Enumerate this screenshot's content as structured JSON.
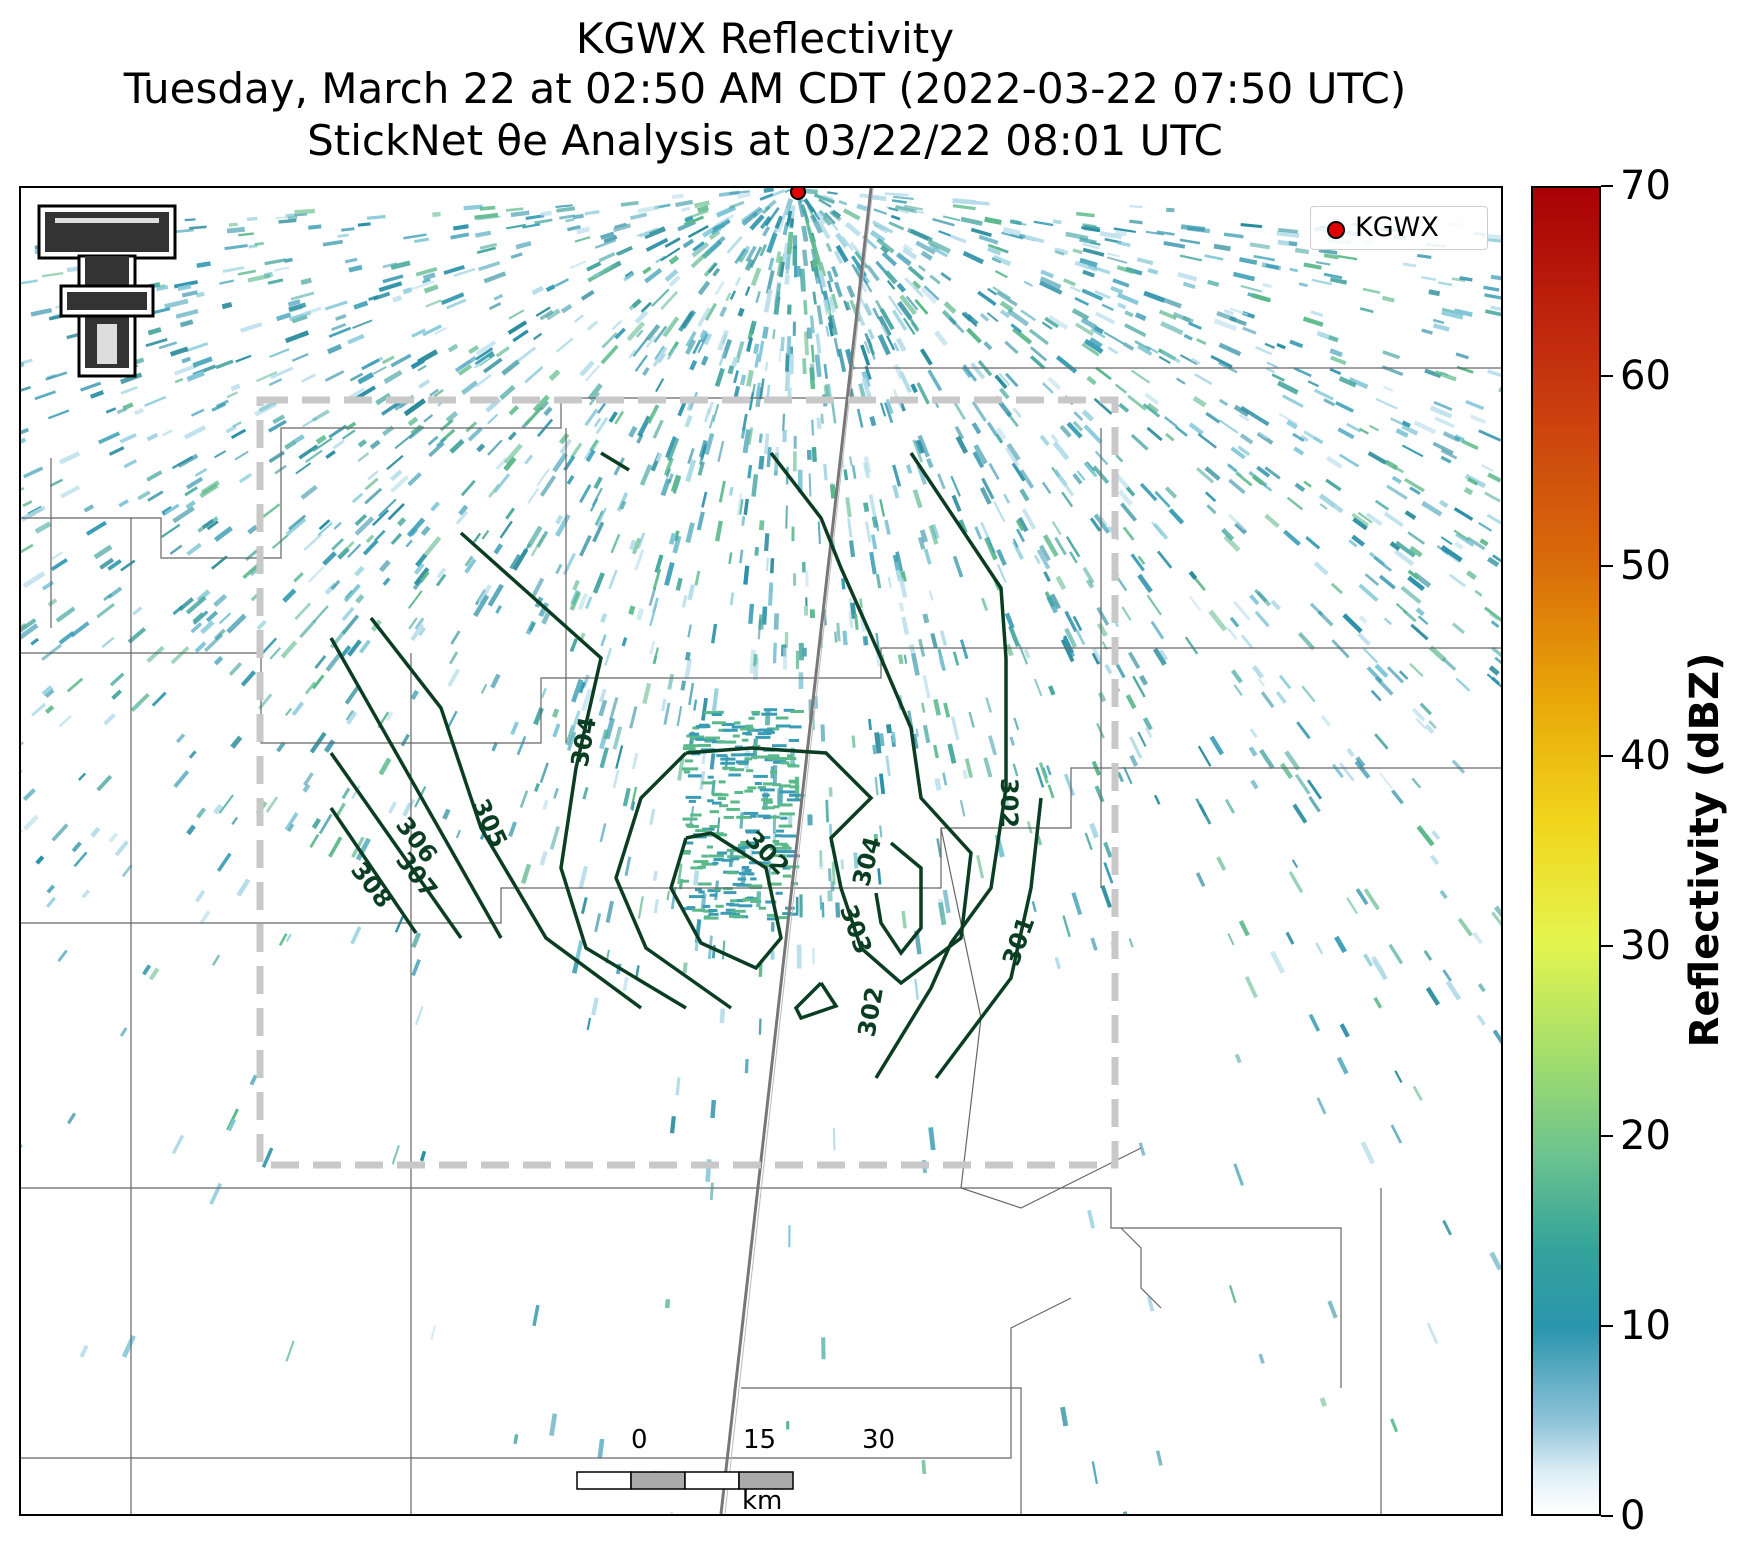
{
  "title": {
    "line1": "KGWX Reflectivity",
    "line2": "Tuesday, March 22 at 02:50 AM CDT (2022-03-22 07:50 UTC)",
    "line3": "StickNet θe Analysis at 03/22/22 08:01 UTC"
  },
  "legend": {
    "label": "KGWX",
    "color": "#e00000"
  },
  "colorbar": {
    "label": "Reflectivity (dBZ)",
    "min": 0,
    "max": 70,
    "ticks": [
      "0",
      "10",
      "20",
      "30",
      "40",
      "50",
      "60",
      "70"
    ]
  },
  "scale_bar": {
    "ticks": [
      "0",
      "15",
      "30"
    ],
    "unit": "km"
  },
  "contours": {
    "color": "#0a3d22",
    "labels": [
      "308",
      "307",
      "306",
      "305",
      "304",
      "302",
      "303",
      "304",
      "302",
      "302",
      "301"
    ]
  },
  "colors": {
    "radar_teal": "#2a8fa8",
    "radar_green": "#5bb88a",
    "dashed_box": "#c8c8c8",
    "county_lines": "#666666"
  },
  "logo": {
    "name": "Texas Tech Double T"
  }
}
